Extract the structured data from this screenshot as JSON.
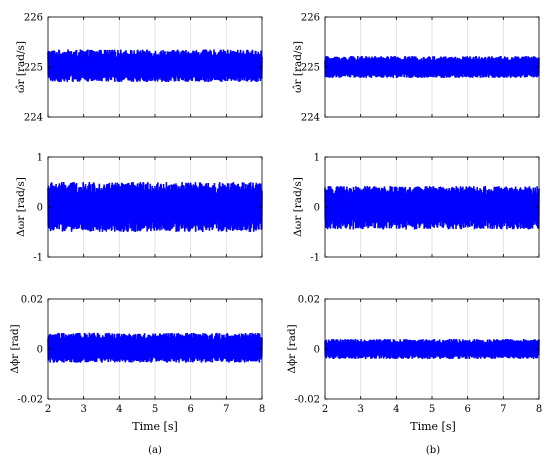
{
  "figure": {
    "captions": [
      "(a)",
      "(b)"
    ],
    "xlabel": "Time [s]",
    "colors": {
      "signal": "#0000ff",
      "axis": "#000000",
      "grid": "#dedede"
    }
  },
  "chart_data": [
    {
      "type": "line",
      "panel": "a",
      "row": 1,
      "ylabel": "ω̂r [rad/s]",
      "xlim": [
        2,
        8
      ],
      "ylim": [
        224,
        226
      ],
      "xticks": [
        2,
        3,
        4,
        5,
        6,
        7,
        8
      ],
      "yticks": [
        224,
        225,
        226
      ],
      "ytick_labels": [
        "224",
        "225",
        "226"
      ],
      "grid": "vertical",
      "series": [
        {
          "x_range": [
            2,
            8
          ],
          "center": 225,
          "band": [
            224.7,
            225.35
          ]
        }
      ]
    },
    {
      "type": "line",
      "panel": "b",
      "row": 1,
      "ylabel": "ω̂r [rad/s]",
      "xlim": [
        2,
        8
      ],
      "ylim": [
        224,
        226
      ],
      "xticks": [
        2,
        3,
        4,
        5,
        6,
        7,
        8
      ],
      "yticks": [
        224,
        225,
        226
      ],
      "ytick_labels": [
        "224",
        "225",
        "226"
      ],
      "grid": "vertical",
      "series": [
        {
          "x_range": [
            2,
            8
          ],
          "center": 225,
          "band": [
            224.78,
            225.22
          ]
        }
      ]
    },
    {
      "type": "line",
      "panel": "a",
      "row": 2,
      "ylabel": "Δωr [rad/s]",
      "xlim": [
        2,
        8
      ],
      "ylim": [
        -1,
        1
      ],
      "xticks": [
        2,
        3,
        4,
        5,
        6,
        7,
        8
      ],
      "yticks": [
        -1,
        0,
        1
      ],
      "ytick_labels": [
        "-1",
        "0",
        "1"
      ],
      "grid": "vertical",
      "series": [
        {
          "x_range": [
            2,
            8
          ],
          "center": 0,
          "band": [
            -0.5,
            0.5
          ]
        }
      ]
    },
    {
      "type": "line",
      "panel": "b",
      "row": 2,
      "ylabel": "Δωr [rad/s]",
      "xlim": [
        2,
        8
      ],
      "ylim": [
        -1,
        1
      ],
      "xticks": [
        2,
        3,
        4,
        5,
        6,
        7,
        8
      ],
      "yticks": [
        -1,
        0,
        1
      ],
      "ytick_labels": [
        "-1",
        "0",
        "1"
      ],
      "grid": "vertical",
      "series": [
        {
          "x_range": [
            2,
            8
          ],
          "center": 0,
          "band": [
            -0.45,
            0.42
          ]
        }
      ]
    },
    {
      "type": "line",
      "panel": "a",
      "row": 3,
      "ylabel": "Δϕr [rad]",
      "xlim": [
        2,
        8
      ],
      "ylim": [
        -0.02,
        0.02
      ],
      "xticks": [
        2,
        3,
        4,
        5,
        6,
        7,
        8
      ],
      "yticks": [
        -0.02,
        0,
        0.02
      ],
      "ytick_labels": [
        "-0.02",
        "0",
        "0.02"
      ],
      "grid": "vertical",
      "series": [
        {
          "x_range": [
            2,
            8
          ],
          "center": 0,
          "band": [
            -0.0055,
            0.0065
          ]
        }
      ]
    },
    {
      "type": "line",
      "panel": "b",
      "row": 3,
      "ylabel": "Δϕr [rad]",
      "xlim": [
        2,
        8
      ],
      "ylim": [
        -0.02,
        0.02
      ],
      "xticks": [
        2,
        3,
        4,
        5,
        6,
        7,
        8
      ],
      "yticks": [
        -0.02,
        0,
        0.02
      ],
      "ytick_labels": [
        "-0.02",
        "0",
        "0.02"
      ],
      "grid": "vertical",
      "series": [
        {
          "x_range": [
            2,
            8
          ],
          "center": 0,
          "band": [
            -0.004,
            0.004
          ]
        }
      ]
    }
  ]
}
